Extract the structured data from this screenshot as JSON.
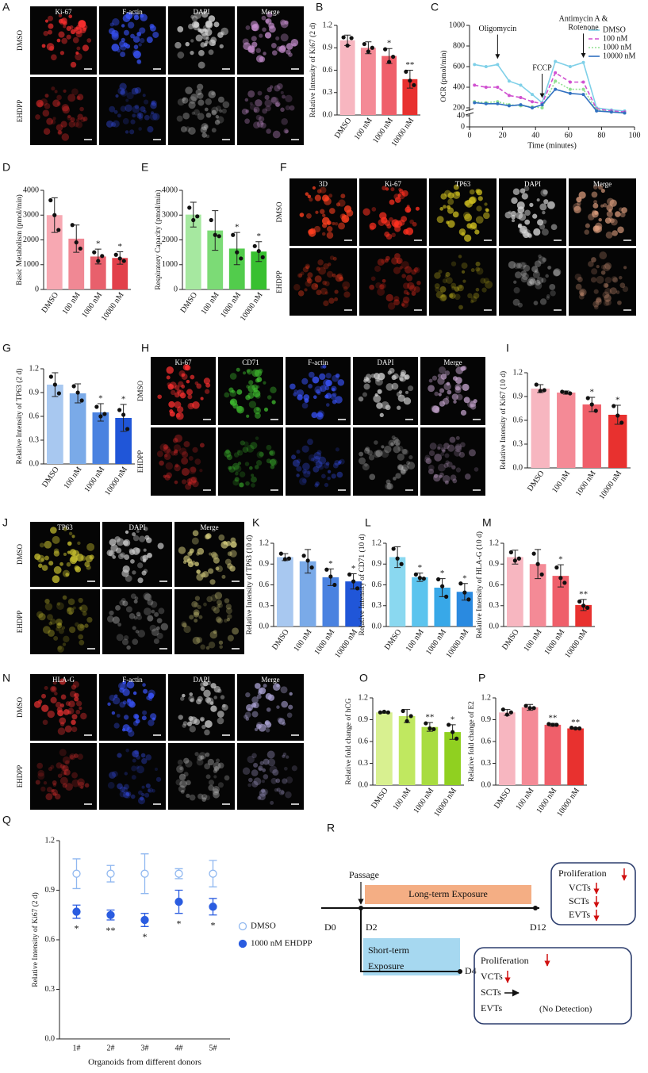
{
  "panels": [
    {
      "label": "A",
      "columns": [
        "Ki-67",
        "F-actin",
        "DAPI",
        "Merge"
      ],
      "rows": [
        "DMSO",
        "EHDPP"
      ],
      "colors": [
        "#ff3030",
        "#3a55ff",
        "#d8d8d8",
        "#c890d0"
      ]
    },
    {
      "label": "F",
      "columns": [
        "3D",
        "Ki-67",
        "TP63",
        "DAPI",
        "Merge"
      ],
      "rows": [
        "DMSO",
        "EHDPP"
      ],
      "colors": [
        "#ff4020",
        "#ff3020",
        "#d0c020",
        "#d8d8d8",
        "#e0a080"
      ]
    },
    {
      "label": "H",
      "columns": [
        "Ki-67",
        "CD71",
        "F-actin",
        "DAPI",
        "Merge"
      ],
      "rows": [
        "DMSO",
        "EHDPP"
      ],
      "colors": [
        "#ff3030",
        "#40c030",
        "#3a55ff",
        "#d0d0d0",
        "#c0a0c8"
      ]
    },
    {
      "label": "J",
      "columns": [
        "TP63",
        "DAPI",
        "Merge"
      ],
      "rows": [
        "DMSO",
        "EHDPP"
      ],
      "colors": [
        "#c8c030",
        "#d0d0d0",
        "#d8d080"
      ]
    },
    {
      "label": "N",
      "columns": [
        "HLA-G",
        "F-actin",
        "DAPI",
        "Merge"
      ],
      "rows": [
        "DMSO",
        "EHDPP"
      ],
      "colors": [
        "#e03030",
        "#3a55ff",
        "#d0d0d0",
        "#a8a0d0"
      ]
    }
  ],
  "chart_data": [
    {
      "label": "B",
      "type": "bar",
      "ylabel": "Relative Intensity of Ki67 (2 d)",
      "categories": [
        "DMSO",
        "100 nM",
        "1000 nM",
        "10000 nM"
      ],
      "values": [
        1.0,
        0.9,
        0.79,
        0.48
      ],
      "errors": [
        0.07,
        0.08,
        0.1,
        0.12
      ],
      "points": [
        [
          1.04,
          0.93,
          1.03
        ],
        [
          0.95,
          0.85,
          0.9
        ],
        [
          0.88,
          0.71,
          0.78
        ],
        [
          0.58,
          0.46,
          0.4
        ]
      ],
      "significance": [
        null,
        null,
        "*",
        "**"
      ],
      "colors": [
        "#f7b6c0",
        "#f48a96",
        "#ef5f6a",
        "#e8312f"
      ],
      "ylim": [
        0,
        1.2
      ],
      "yticks": [
        {
          "value": 0,
          "label": "0.0"
        },
        0.3,
        0.6,
        0.9,
        1.2
      ]
    },
    {
      "label": "C",
      "type": "line",
      "ylabel": "OCR (pmol/min)",
      "xlabel": "Time (minutes)",
      "x": [
        3,
        10,
        17,
        24,
        31,
        38,
        44,
        52,
        61,
        69,
        77,
        86,
        94
      ],
      "series": [
        {
          "name": "DMSO",
          "color": "#7fd0e8",
          "dash": "none",
          "values": [
            620,
            600,
            620,
            460,
            420,
            330,
            250,
            650,
            600,
            640,
            200,
            180,
            170
          ]
        },
        {
          "name": "100 nM",
          "color": "#d050d0",
          "dash": "5 3",
          "values": [
            420,
            400,
            400,
            320,
            300,
            260,
            240,
            540,
            450,
            450,
            190,
            170,
            160
          ]
        },
        {
          "name": "1000 nM",
          "color": "#90e090",
          "dash": "2 2",
          "values": [
            260,
            250,
            260,
            230,
            220,
            210,
            200,
            460,
            380,
            380,
            180,
            160,
            150
          ]
        },
        {
          "name": "10000 nM",
          "color": "#3070c0",
          "dash": "none",
          "values": [
            250,
            240,
            240,
            220,
            230,
            200,
            230,
            380,
            340,
            330,
            170,
            160,
            150
          ]
        }
      ],
      "annotations": [
        {
          "lines": [
            "Oligomycin"
          ],
          "x": 17,
          "y": 680
        },
        {
          "lines": [
            "FCCP"
          ],
          "x": 44,
          "y": 300
        },
        {
          "lines": [
            "Antimycin A &",
            "Rotenone"
          ],
          "x": 69,
          "y": 690
        }
      ],
      "xlim": [
        0,
        100
      ],
      "xticks": [
        0,
        20,
        40,
        60,
        80,
        100
      ],
      "ylim": [
        0,
        1000
      ],
      "ybreak": [
        40,
        200
      ],
      "yticks": [
        0,
        40,
        200,
        400,
        600,
        800,
        1000
      ],
      "legend": "upper right"
    },
    {
      "label": "D",
      "type": "bar",
      "ylabel": "Basic Metabolism (pmol/min)",
      "categories": [
        "DMSO",
        "100 nM",
        "1000 nM",
        "10000 nM"
      ],
      "values": [
        3000,
        2050,
        1330,
        1270
      ],
      "errors": [
        700,
        550,
        300,
        250
      ],
      "points": [
        [
          3600,
          3000,
          2400
        ],
        [
          2600,
          1900,
          1650
        ],
        [
          1500,
          1150,
          1350
        ],
        [
          1400,
          1250,
          1150
        ]
      ],
      "significance": [
        null,
        null,
        "*",
        "*"
      ],
      "colors": [
        "#f7a8b2",
        "#f08894",
        "#e8606c",
        "#e2404a"
      ],
      "ylim": [
        0,
        4000
      ],
      "yticks": [
        0,
        1000,
        2000,
        3000,
        4000
      ]
    },
    {
      "label": "E",
      "type": "bar",
      "ylabel": "Respiratory Capacity (pmol/min)",
      "categories": [
        "DMSO",
        "100 nM",
        "1000 nM",
        "10000 nM"
      ],
      "values": [
        3020,
        2380,
        1650,
        1530
      ],
      "errors": [
        500,
        800,
        650,
        400
      ],
      "points": [
        [
          3300,
          2800,
          2950
        ],
        [
          2800,
          2200,
          2150
        ],
        [
          2200,
          1500,
          1250
        ],
        [
          1750,
          1550,
          1300
        ]
      ],
      "significance": [
        null,
        null,
        "*",
        "*"
      ],
      "colors": [
        "#a6e8a0",
        "#7cdb76",
        "#52cc4c",
        "#38c030"
      ],
      "ylim": [
        0,
        4000
      ],
      "yticks": [
        0,
        1000,
        2000,
        3000,
        4000
      ]
    },
    {
      "label": "G",
      "type": "bar",
      "ylabel": "Relative Intensity of TP63 (2 d)",
      "categories": [
        "DMSO",
        "100 nM",
        "1000 nM",
        "10000 nM"
      ],
      "values": [
        1.0,
        0.89,
        0.65,
        0.58
      ],
      "errors": [
        0.15,
        0.12,
        0.11,
        0.17
      ],
      "points": [
        [
          1.1,
          1.0,
          0.89
        ],
        [
          0.98,
          0.9,
          0.8
        ],
        [
          0.72,
          0.6,
          0.63
        ],
        [
          0.68,
          0.62,
          0.44
        ]
      ],
      "significance": [
        null,
        null,
        "*",
        "*"
      ],
      "colors": [
        "#a8c8f0",
        "#7aaae8",
        "#4a82e0",
        "#2056d8"
      ],
      "ylim": [
        0,
        1.2
      ],
      "yticks": [
        {
          "value": 0,
          "label": "0.0"
        },
        0.3,
        0.6,
        0.9,
        1.2
      ]
    },
    {
      "label": "I",
      "type": "bar",
      "ylabel": "Relative Intensity of Ki67 (10 d)",
      "categories": [
        "DMSO",
        "100 nM",
        "1000 nM",
        "10000 nM"
      ],
      "values": [
        1.0,
        0.95,
        0.8,
        0.67
      ],
      "errors": [
        0.05,
        0.02,
        0.09,
        0.12
      ],
      "points": [
        [
          1.05,
          0.97,
          0.98
        ],
        [
          0.96,
          0.95,
          0.94
        ],
        [
          0.88,
          0.8,
          0.72
        ],
        [
          0.78,
          0.66,
          0.57
        ]
      ],
      "significance": [
        null,
        null,
        "*",
        "*"
      ],
      "colors": [
        "#f7b6c0",
        "#f48a96",
        "#ef5f6a",
        "#e8312f"
      ],
      "ylim": [
        0,
        1.2
      ],
      "yticks": [
        {
          "value": 0,
          "label": "0.0"
        },
        0.3,
        0.6,
        0.9,
        1.2
      ]
    },
    {
      "label": "K",
      "type": "bar",
      "ylabel": "Relative Intensity of TP63 (10 d)",
      "categories": [
        "DMSO",
        "100 nM",
        "1000 nM",
        "10000 nM"
      ],
      "values": [
        1.0,
        0.94,
        0.71,
        0.65
      ],
      "errors": [
        0.05,
        0.17,
        0.12,
        0.11
      ],
      "points": [
        [
          1.05,
          0.97,
          0.98
        ],
        [
          1.02,
          0.95,
          0.85
        ],
        [
          0.82,
          0.72,
          0.6
        ],
        [
          0.75,
          0.65,
          0.55
        ]
      ],
      "significance": [
        null,
        null,
        "*",
        "*"
      ],
      "colors": [
        "#a8c8f0",
        "#7aaae8",
        "#4a82e0",
        "#2056d8"
      ],
      "ylim": [
        0,
        1.2
      ],
      "yticks": [
        {
          "value": 0,
          "label": "0.0"
        },
        0.3,
        0.6,
        0.9,
        1.2
      ]
    },
    {
      "label": "L",
      "type": "bar",
      "ylabel": "Relative Intensity of CD71 (10 d)",
      "categories": [
        "DMSO",
        "100 nM",
        "1000 nM",
        "10000 nM"
      ],
      "values": [
        1.0,
        0.71,
        0.56,
        0.5
      ],
      "errors": [
        0.15,
        0.06,
        0.13,
        0.12
      ],
      "points": [
        [
          1.12,
          0.98,
          0.9
        ],
        [
          0.75,
          0.7,
          0.69
        ],
        [
          0.68,
          0.58,
          0.43
        ],
        [
          0.62,
          0.49,
          0.39
        ]
      ],
      "significance": [
        null,
        "*",
        "*",
        "*"
      ],
      "colors": [
        "#8ad8f0",
        "#5cc4ee",
        "#38a8e8",
        "#2a8ae0"
      ],
      "ylim": [
        0,
        1.2
      ],
      "yticks": [
        {
          "value": 0,
          "label": "0.0"
        },
        0.3,
        0.6,
        0.9,
        1.2
      ]
    },
    {
      "label": "M",
      "type": "bar",
      "ylabel": "Relative Intensity of HLA-G (10 d)",
      "categories": [
        "DMSO",
        "100 nM",
        "1000 nM",
        "10000 nM"
      ],
      "values": [
        1.0,
        0.9,
        0.73,
        0.31
      ],
      "errors": [
        0.1,
        0.21,
        0.16,
        0.08
      ],
      "points": [
        [
          1.07,
          0.95,
          0.98
        ],
        [
          1.05,
          0.9,
          0.75
        ],
        [
          0.85,
          0.7,
          0.63
        ],
        [
          0.36,
          0.3,
          0.27
        ]
      ],
      "significance": [
        null,
        null,
        "*",
        "**"
      ],
      "colors": [
        "#f7b6c0",
        "#f48a96",
        "#ef5f6a",
        "#e8312f"
      ],
      "ylim": [
        0,
        1.2
      ],
      "yticks": [
        {
          "value": 0,
          "label": "0.0"
        },
        0.3,
        0.6,
        0.9,
        1.2
      ]
    },
    {
      "label": "O",
      "type": "bar",
      "ylabel": "Relative fold change of hCG",
      "categories": [
        "DMSO",
        "100 nM",
        "1000 nM",
        "10000 nM"
      ],
      "values": [
        1.0,
        0.95,
        0.8,
        0.73
      ],
      "errors": [
        0.01,
        0.09,
        0.06,
        0.1
      ],
      "points": [
        [
          1.0,
          1.01,
          1.0
        ],
        [
          1.02,
          0.88,
          0.95
        ],
        [
          0.85,
          0.78,
          0.77
        ],
        [
          0.83,
          0.73,
          0.64
        ]
      ],
      "significance": [
        null,
        null,
        "**",
        "*"
      ],
      "colors": [
        "#d8f090",
        "#c0e860",
        "#a8dc40",
        "#90d020"
      ],
      "ylim": [
        0,
        1.2
      ],
      "yticks": [
        {
          "value": 0,
          "label": "0.0"
        },
        0.3,
        0.6,
        0.9,
        1.2
      ]
    },
    {
      "label": "P",
      "type": "bar",
      "ylabel": "Relative fold change of E2",
      "categories": [
        "DMSO",
        "100 nM",
        "1000 nM",
        "10000 nM"
      ],
      "values": [
        1.0,
        1.07,
        0.83,
        0.78
      ],
      "errors": [
        0.04,
        0.04,
        0.02,
        0.01
      ],
      "points": [
        [
          1.04,
          0.97,
          1.0
        ],
        [
          1.09,
          1.06,
          1.06
        ],
        [
          0.84,
          0.83,
          0.83
        ],
        [
          0.79,
          0.78,
          0.78
        ]
      ],
      "significance": [
        null,
        null,
        "**",
        "**"
      ],
      "colors": [
        "#f7b6c0",
        "#f48a96",
        "#ef5f6a",
        "#e8312f"
      ],
      "ylim": [
        0,
        1.2
      ],
      "yticks": [
        {
          "value": 0,
          "label": "0.0"
        },
        0.3,
        0.6,
        0.9,
        1.2
      ]
    },
    {
      "label": "Q",
      "type": "dot",
      "ylabel": "Relative Intensity of Ki67 (2 d)",
      "xlabel": "Organoids from different donors",
      "categories": [
        "1#",
        "2#",
        "3#",
        "4#",
        "5#"
      ],
      "series": [
        {
          "name": "DMSO",
          "color": "#90b8f0",
          "filled": false,
          "values": [
            1.0,
            1.0,
            1.0,
            1.0,
            1.0
          ],
          "errors": [
            0.09,
            0.05,
            0.12,
            0.03,
            0.08
          ]
        },
        {
          "name": "1000 nM EHDPP",
          "color": "#2a5ce0",
          "filled": true,
          "values": [
            0.77,
            0.75,
            0.72,
            0.83,
            0.8
          ],
          "errors": [
            0.04,
            0.03,
            0.04,
            0.07,
            0.05
          ]
        }
      ],
      "significance": [
        "*",
        "**",
        "*",
        "*",
        "*"
      ],
      "ylim": [
        0,
        1.2
      ],
      "yticks": [
        {
          "value": 0,
          "label": "0.0"
        },
        0.3,
        0.6,
        0.9,
        1.2
      ],
      "legend": "right"
    }
  ],
  "diagram": {
    "label": "R",
    "passage": "Passage",
    "long_term": "Long-term Exposure",
    "short_term": [
      "Short-term",
      "Exposure"
    ],
    "days": [
      "D0",
      "D2",
      "D12",
      "D4"
    ],
    "long_box": [
      "Proliferation",
      "VCTs",
      "SCTs",
      "EVTs"
    ],
    "short_box": [
      "Proliferation",
      "VCTs",
      "SCTs",
      "EVTs",
      "(No Detection)"
    ]
  }
}
